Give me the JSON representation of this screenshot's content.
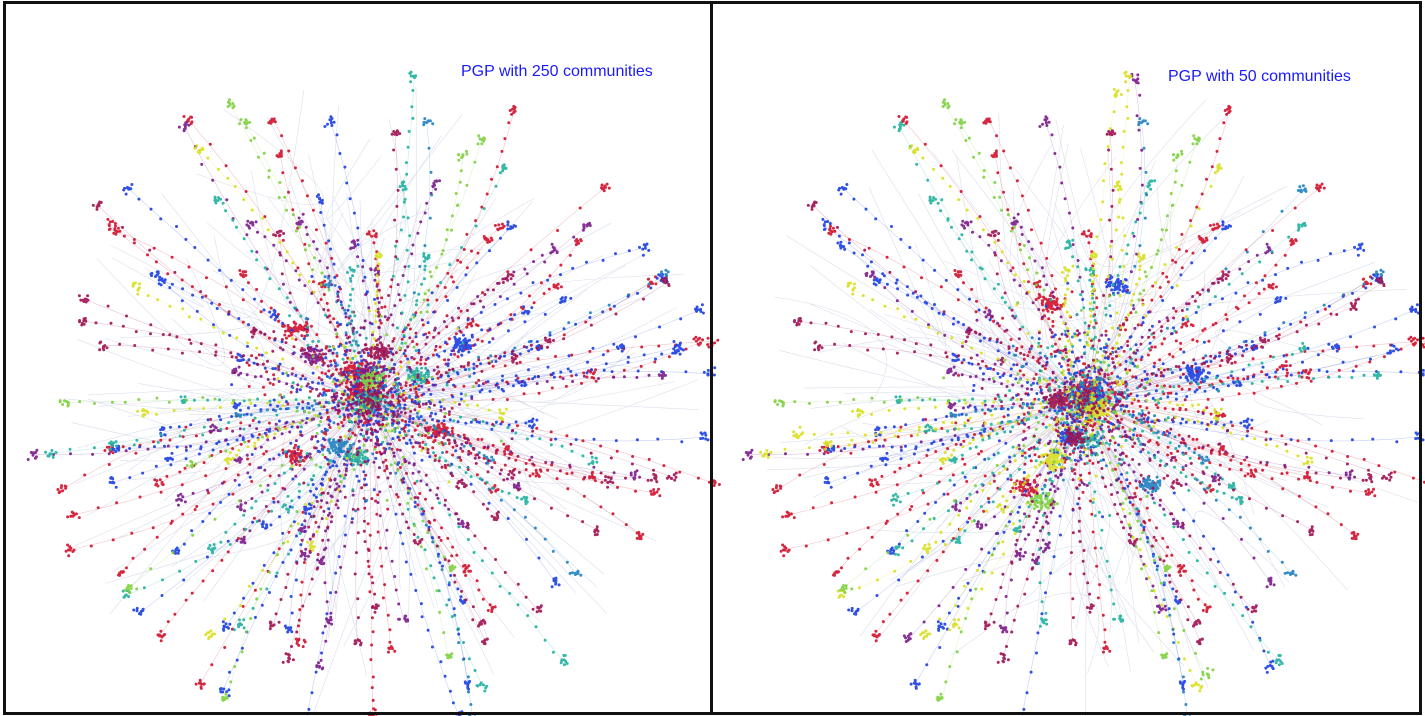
{
  "panels": [
    {
      "label": "PGP with 250 communities"
    },
    {
      "label": "PGP with 50 communities"
    }
  ]
}
